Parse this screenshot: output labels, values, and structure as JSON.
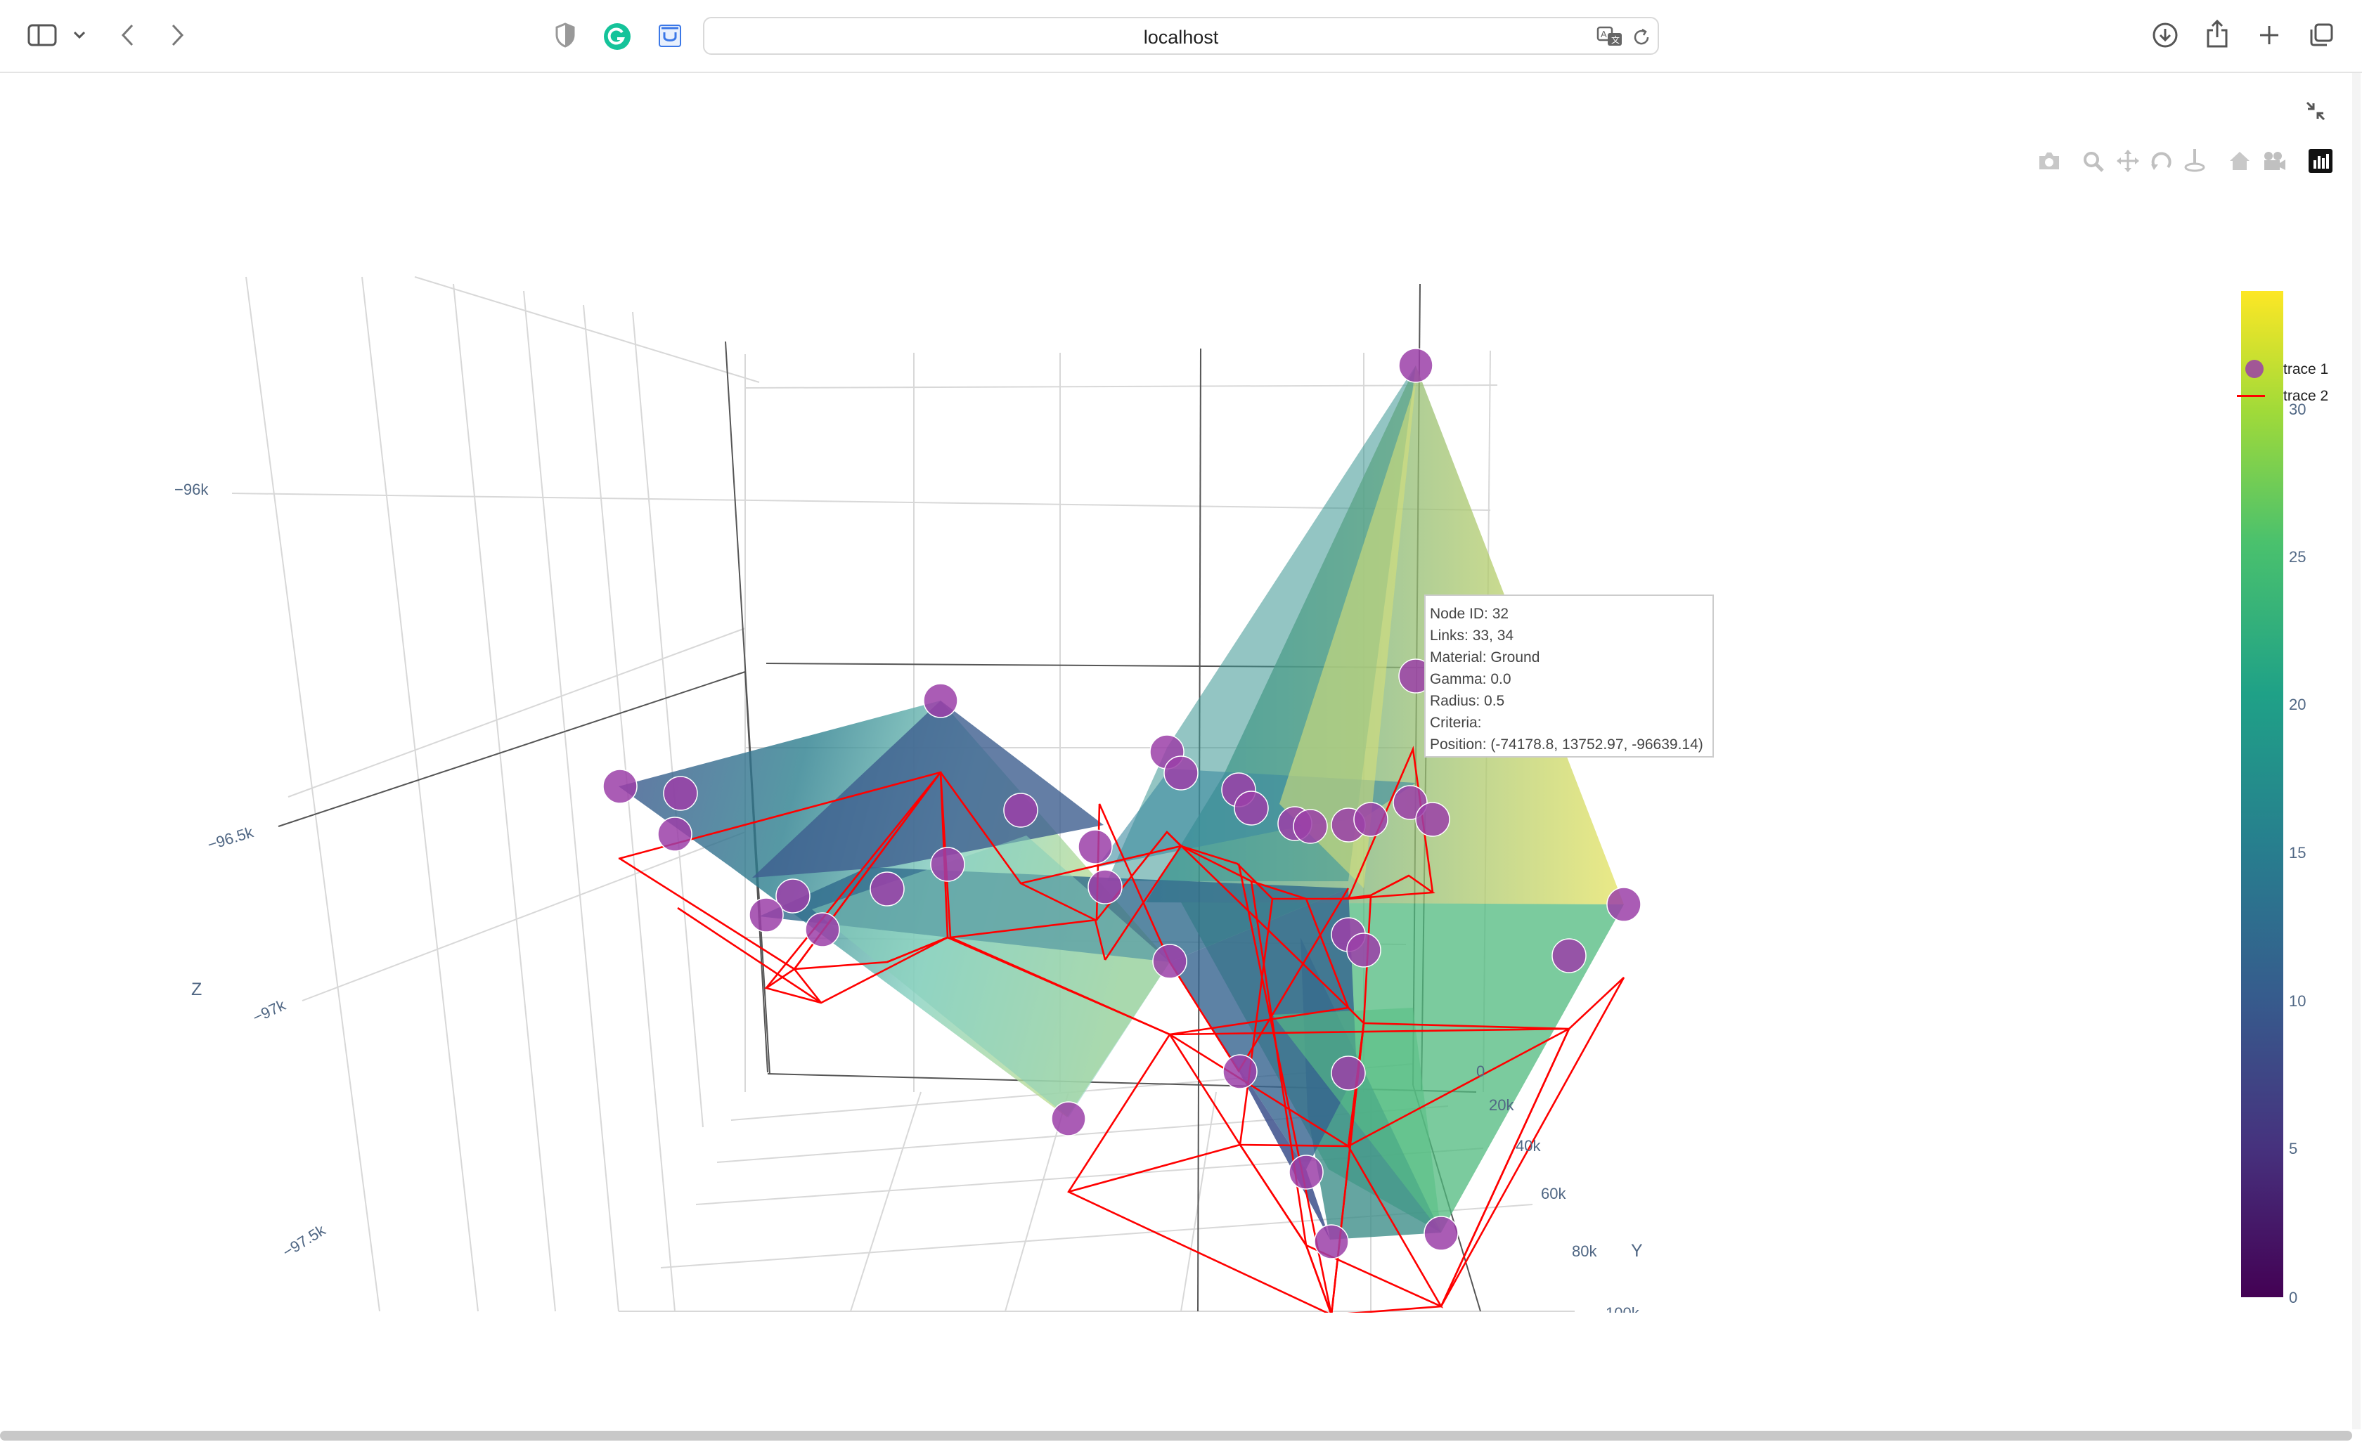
{
  "browser": {
    "url": "localhost",
    "icons": [
      "sidebar-icon",
      "chevron-down-icon",
      "back-icon",
      "forward-icon",
      "shield-icon",
      "grammarly-icon",
      "extension-icon",
      "translate-icon",
      "reload-icon",
      "download-icon",
      "share-icon",
      "new-tab-icon",
      "tabs-overview-icon"
    ]
  },
  "plot": {
    "modebar": [
      "camera-icon",
      "zoom-icon",
      "pan-icon",
      "orbit-icon",
      "turntable-icon",
      "home-icon",
      "reset-camera-icon",
      "plotly-logo-icon"
    ],
    "z_axis": {
      "label": "Z",
      "ticks": [
        "−96k",
        "−96.5k",
        "−97k",
        "−97.5k"
      ]
    },
    "y_axis": {
      "label": "Y",
      "ticks": [
        "0",
        "20k",
        "40k",
        "60k",
        "80k",
        "100k"
      ]
    },
    "legend": [
      {
        "name": "trace 1",
        "color": "#9b3fa8"
      },
      {
        "name": "trace 2",
        "color": "#ff0000"
      }
    ],
    "colorbar": {
      "ticks": [
        "0",
        "5",
        "10",
        "15",
        "20",
        "25",
        "30"
      ],
      "colors": [
        "#440154",
        "#3b528b",
        "#21918c",
        "#5ec962",
        "#fde725"
      ]
    },
    "tooltip": {
      "lines": [
        "Node ID: 32",
        "Links: 33, 34",
        "Material: Ground",
        "Gamma: 0.0",
        "Radius: 0.5",
        "Criteria:",
        "Position: (-74178.8, 13752.97, -96639.14)"
      ]
    },
    "colors": {
      "node": "#9b3fa8",
      "edge": "#ff0000",
      "grid": "#d8d8d8"
    }
  }
}
